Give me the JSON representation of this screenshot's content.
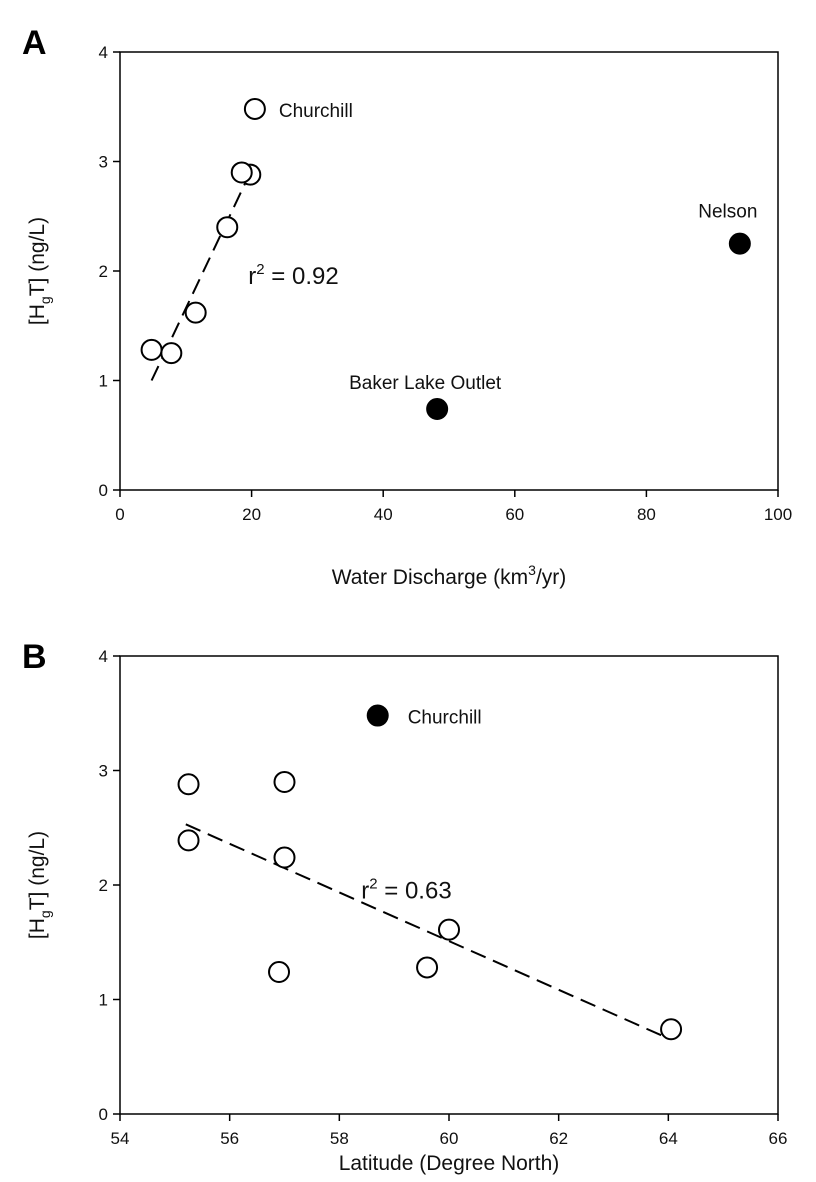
{
  "chart_data": [
    {
      "panel": "A",
      "type": "scatter",
      "xlabel": {
        "main": "Water Discharge (km",
        "sup": "3",
        "tail": "/yr)"
      },
      "ylabel": {
        "main": "[H",
        "sub": "g",
        "tail": "T] (ng/L)"
      },
      "xlim": [
        0,
        100
      ],
      "ylim": [
        0,
        4
      ],
      "x_ticks": [
        0,
        20,
        40,
        60,
        80,
        100
      ],
      "y_ticks": [
        0,
        1,
        2,
        3,
        4
      ],
      "series": [
        {
          "marker": "open-circle",
          "points": [
            {
              "x": 20.5,
              "y": 3.48,
              "label": "Churchill"
            },
            {
              "x": 19.8,
              "y": 2.88
            },
            {
              "x": 18.5,
              "y": 2.9
            },
            {
              "x": 16.3,
              "y": 2.4
            },
            {
              "x": 11.5,
              "y": 1.62
            },
            {
              "x": 7.8,
              "y": 1.25
            },
            {
              "x": 4.8,
              "y": 1.28
            }
          ]
        },
        {
          "marker": "filled-circle",
          "points": [
            {
              "x": 94.2,
              "y": 2.25,
              "label": "Nelson"
            },
            {
              "x": 48.2,
              "y": 0.74,
              "label": "Baker Lake Outlet"
            }
          ]
        }
      ],
      "trendline": {
        "x": [
          4.8,
          20.2
        ],
        "y": [
          1.0,
          2.95
        ],
        "style": "dashed"
      },
      "r2": {
        "prefix": "r",
        "sup": "2",
        "text": " = 0.92",
        "x": 19.5,
        "y": 1.88
      }
    },
    {
      "panel": "B",
      "type": "scatter",
      "xlabel": {
        "main": "Latitude (Degree North)"
      },
      "ylabel": {
        "main": "[H",
        "sub": "g",
        "tail": "T] (ng/L)"
      },
      "xlim": [
        54,
        66
      ],
      "ylim": [
        0,
        4
      ],
      "x_ticks": [
        54,
        56,
        58,
        60,
        62,
        64,
        66
      ],
      "y_ticks": [
        0,
        1,
        2,
        3,
        4
      ],
      "series": [
        {
          "marker": "filled-circle",
          "points": [
            {
              "x": 58.7,
              "y": 3.48,
              "label": "Churchill"
            }
          ]
        },
        {
          "marker": "open-circle",
          "points": [
            {
              "x": 55.25,
              "y": 2.88
            },
            {
              "x": 55.25,
              "y": 2.39
            },
            {
              "x": 57.0,
              "y": 2.9
            },
            {
              "x": 57.0,
              "y": 2.24
            },
            {
              "x": 56.9,
              "y": 1.24
            },
            {
              "x": 59.6,
              "y": 1.28
            },
            {
              "x": 60.0,
              "y": 1.61
            },
            {
              "x": 64.05,
              "y": 0.74
            }
          ]
        }
      ],
      "trendline": {
        "x": [
          55.2,
          64.0
        ],
        "y": [
          2.53,
          0.66
        ],
        "style": "dashed"
      },
      "r2": {
        "prefix": "r",
        "sup": "2",
        "text": " = 0.63",
        "x": 58.4,
        "y": 1.88
      }
    }
  ]
}
